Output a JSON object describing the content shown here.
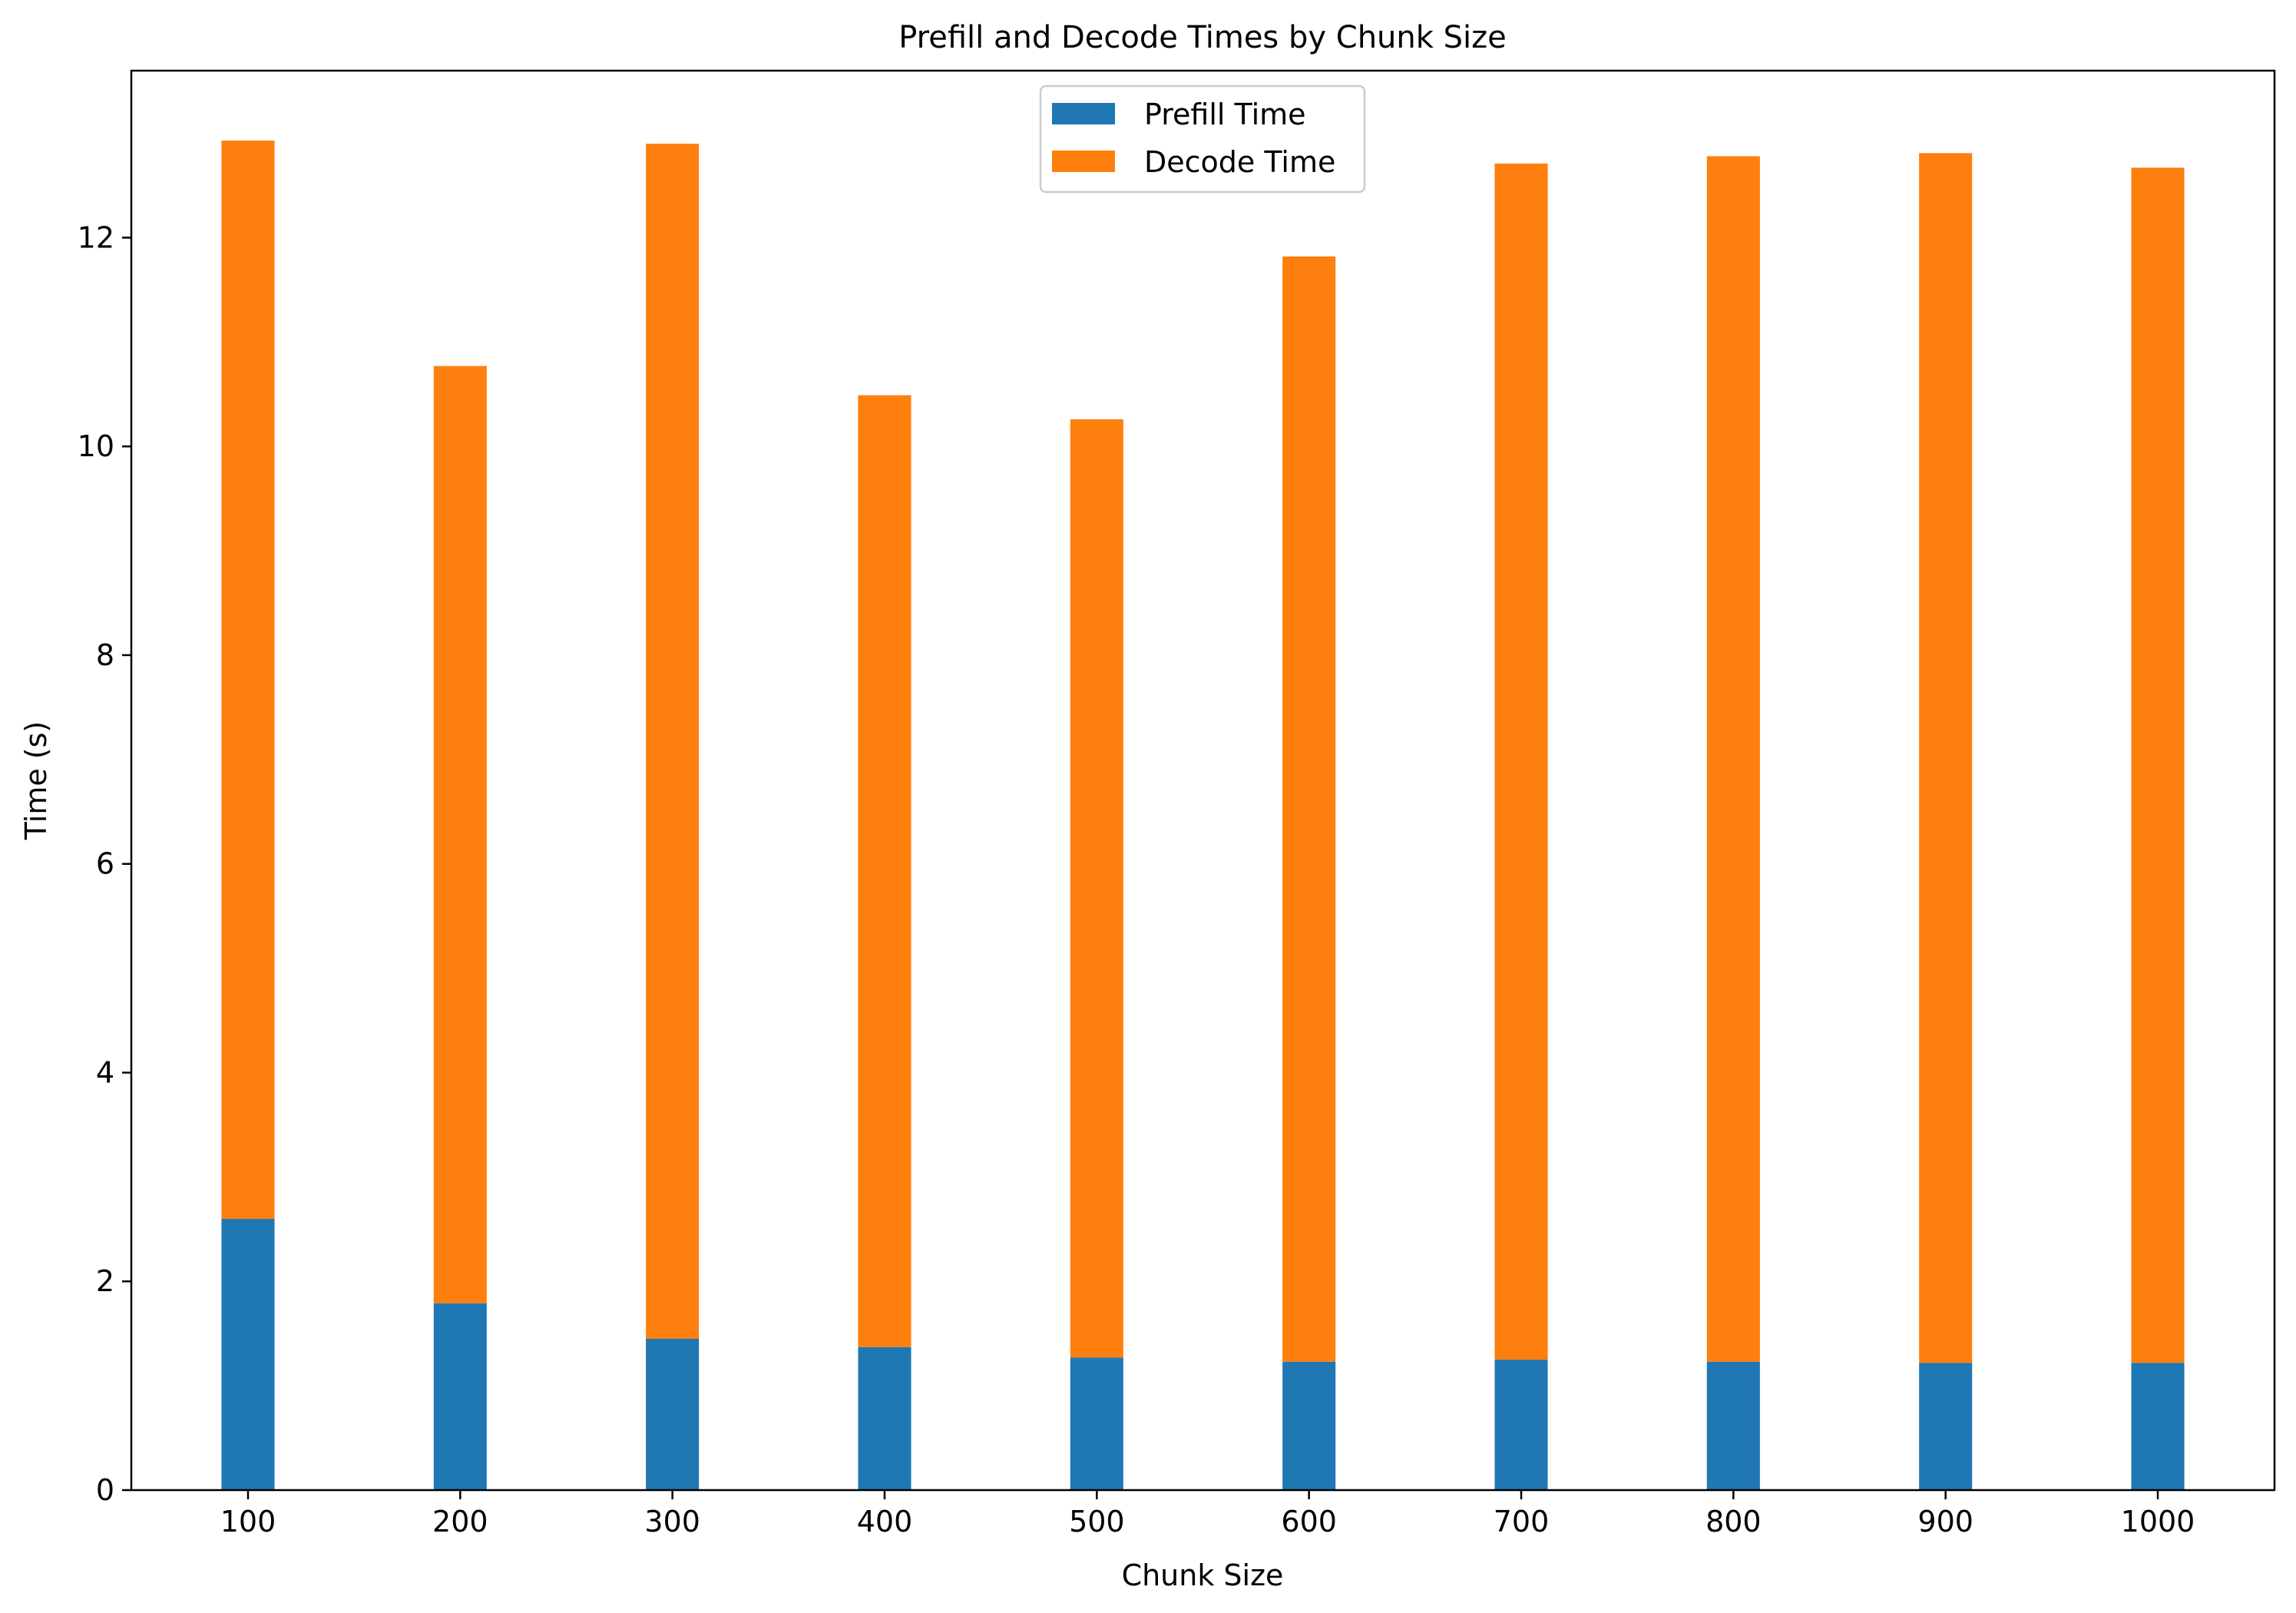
{
  "chart_data": {
    "type": "bar",
    "stacked": true,
    "title": "Prefill and Decode Times by Chunk Size",
    "xlabel": "Chunk Size",
    "ylabel": "Time (s)",
    "categories": [
      "100",
      "200",
      "300",
      "400",
      "500",
      "600",
      "700",
      "800",
      "900",
      "1000"
    ],
    "series": [
      {
        "name": "Prefill Time",
        "color": "#1f77b4",
        "values": [
          2.6,
          1.79,
          1.45,
          1.37,
          1.27,
          1.23,
          1.25,
          1.23,
          1.22,
          1.22
        ]
      },
      {
        "name": "Decode Time",
        "color": "#ff7f0e",
        "values": [
          10.33,
          8.98,
          11.45,
          9.12,
          8.99,
          10.59,
          11.46,
          11.55,
          11.59,
          11.45
        ]
      }
    ],
    "ylim": [
      0,
      13.6
    ],
    "yticks": [
      0,
      2,
      4,
      6,
      8,
      10,
      12
    ],
    "legend_position": "top-center",
    "grid": false
  }
}
